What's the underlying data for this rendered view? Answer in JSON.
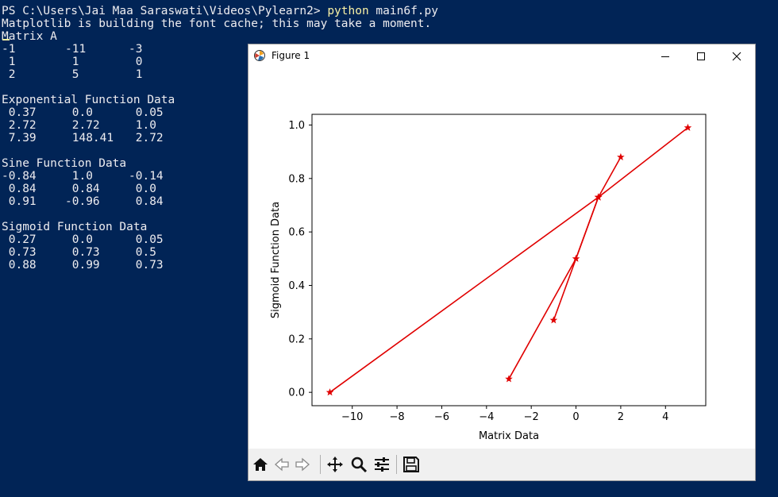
{
  "terminal": {
    "prompt": "PS C:\\Users\\Jai Maa Saraswati\\Videos\\Pylearn2> ",
    "command": "python",
    "command_arg": " main6f.py",
    "lines": [
      "Matplotlib is building the font cache; this may take a moment.",
      "Matrix A"
    ],
    "matrix_a": [
      [
        "-1",
        "-11",
        "-3"
      ],
      [
        " 1",
        " 1",
        " 0"
      ],
      [
        " 2",
        " 5",
        " 1"
      ]
    ],
    "exp_title": "Exponential Function Data",
    "exp_rows": [
      [
        " 0.37",
        " 0.0",
        " 0.05"
      ],
      [
        " 2.72",
        " 2.72",
        " 1.0"
      ],
      [
        " 7.39",
        " 148.41",
        " 2.72"
      ]
    ],
    "sine_title": "Sine Function Data",
    "sine_rows": [
      [
        "-0.84",
        " 1.0",
        "-0.14"
      ],
      [
        " 0.84",
        " 0.84",
        " 0.0"
      ],
      [
        " 0.91",
        "-0.96",
        " 0.84"
      ]
    ],
    "sigmoid_title": "Sigmoid Function Data",
    "sigmoid_rows": [
      [
        " 0.27",
        " 0.0",
        " 0.05"
      ],
      [
        " 0.73",
        " 0.73",
        " 0.5"
      ],
      [
        " 0.88",
        " 0.99",
        " 0.73"
      ]
    ]
  },
  "figure": {
    "title": "Figure 1",
    "toolbar": [
      "home-icon",
      "back-icon",
      "forward-icon",
      "pan-icon",
      "zoom-icon",
      "configure-icon",
      "save-icon"
    ]
  },
  "chart_data": {
    "type": "line",
    "xlabel": "Matrix Data",
    "ylabel": "Sigmoid Function Data",
    "xlim": [
      -11.8,
      5.8
    ],
    "ylim": [
      -0.05,
      1.04
    ],
    "xticks": [
      -10,
      -8,
      -6,
      -4,
      -2,
      0,
      2,
      4
    ],
    "xtick_labels": [
      "−10",
      "−8",
      "−6",
      "−4",
      "−2",
      "0",
      "2",
      "4"
    ],
    "yticks": [
      0.0,
      0.2,
      0.4,
      0.6,
      0.8,
      1.0
    ],
    "ytick_labels": [
      "0.0",
      "0.2",
      "0.4",
      "0.6",
      "0.8",
      "1.0"
    ],
    "color": "#e00000",
    "marker": "star",
    "series": [
      {
        "x": [
          -1,
          1,
          2
        ],
        "y": [
          0.27,
          0.73,
          0.88
        ]
      },
      {
        "x": [
          -11,
          1,
          5
        ],
        "y": [
          0.0,
          0.73,
          0.99
        ]
      },
      {
        "x": [
          -3,
          0,
          1
        ],
        "y": [
          0.05,
          0.5,
          0.73
        ]
      }
    ]
  }
}
